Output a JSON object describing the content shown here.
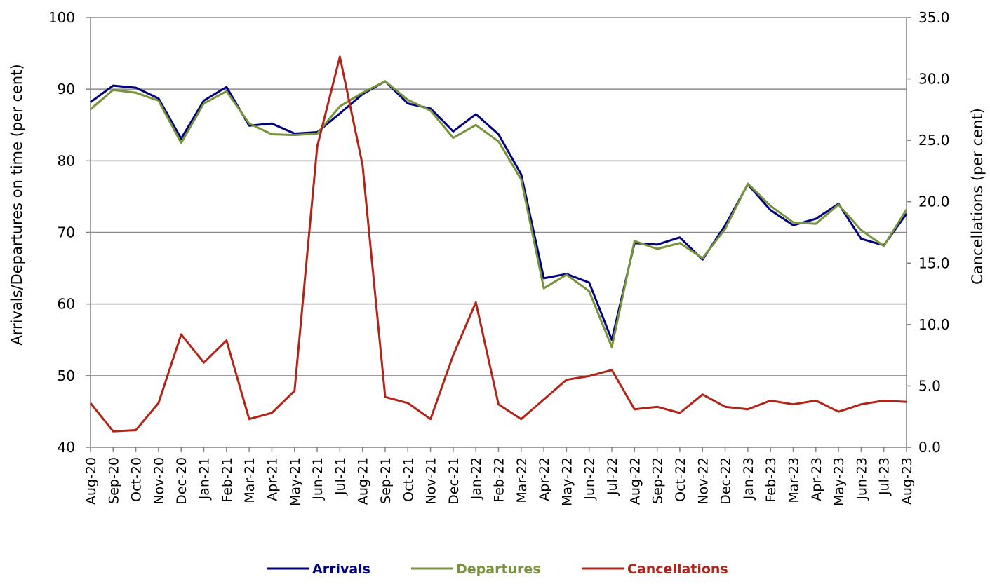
{
  "chart_data": {
    "type": "line",
    "x": [
      "Aug-20",
      "Sep-20",
      "Oct-20",
      "Nov-20",
      "Dec-20",
      "Jan-21",
      "Feb-21",
      "Mar-21",
      "Apr-21",
      "May-21",
      "Jun-21",
      "Jul-21",
      "Aug-21",
      "Sep-21",
      "Oct-21",
      "Nov-21",
      "Dec-21",
      "Jan-22",
      "Feb-22",
      "Mar-22",
      "Apr-22",
      "May-22",
      "Jun-22",
      "Jul-22",
      "Aug-22",
      "Sep-22",
      "Oct-22",
      "Nov-22",
      "Dec-22",
      "Jan-23",
      "Feb-23",
      "Mar-23",
      "Apr-23",
      "May-23",
      "Jun-23",
      "Jul-23",
      "Aug-23"
    ],
    "series": [
      {
        "name": "Arrivals",
        "axis": "left",
        "color": "#000080",
        "values": [
          88.2,
          90.5,
          90.2,
          88.7,
          83.1,
          88.4,
          90.3,
          84.9,
          85.2,
          83.8,
          84.0,
          86.6,
          89.3,
          91.1,
          88.0,
          87.3,
          84.1,
          86.5,
          83.7,
          78.1,
          63.6,
          64.2,
          63.0,
          55.0,
          68.5,
          68.3,
          69.3,
          66.2,
          71.0,
          76.7,
          73.1,
          71.0,
          71.9,
          74.0,
          69.1,
          68.2,
          72.6
        ]
      },
      {
        "name": "Departures",
        "axis": "left",
        "color": "#77933C",
        "values": [
          87.2,
          89.9,
          89.5,
          88.4,
          82.5,
          88.0,
          89.7,
          85.2,
          83.7,
          83.6,
          83.8,
          87.6,
          89.5,
          91.1,
          88.5,
          87.0,
          83.2,
          85.0,
          82.7,
          77.4,
          62.2,
          64.1,
          61.8,
          54.0,
          68.8,
          67.7,
          68.5,
          66.4,
          70.5,
          76.8,
          73.7,
          71.4,
          71.2,
          73.9,
          70.3,
          68.1,
          73.2
        ]
      },
      {
        "name": "Cancellations",
        "axis": "right",
        "color": "#B22418",
        "values": [
          3.6,
          1.3,
          1.4,
          3.6,
          9.2,
          6.9,
          8.7,
          2.3,
          2.8,
          4.6,
          24.5,
          31.8,
          23.0,
          4.1,
          3.6,
          2.3,
          7.5,
          11.8,
          3.5,
          2.3,
          3.9,
          5.5,
          5.8,
          6.3,
          3.1,
          3.3,
          2.8,
          4.3,
          3.3,
          3.1,
          3.8,
          3.5,
          3.8,
          2.9,
          3.5,
          3.8,
          3.7
        ]
      }
    ],
    "ylabel": "Arrivals/Departures on time (per cent)",
    "ylim": [
      40,
      100
    ],
    "yticks": [
      "40",
      "50",
      "60",
      "70",
      "80",
      "90",
      "100"
    ],
    "y2label": "Cancellations (per cent)",
    "y2lim": [
      0,
      35
    ],
    "y2ticks": [
      "0.0",
      "5.0",
      "10.0",
      "15.0",
      "20.0",
      "25.0",
      "30.0",
      "35.0"
    ],
    "grid": true,
    "legend": "bottom"
  }
}
